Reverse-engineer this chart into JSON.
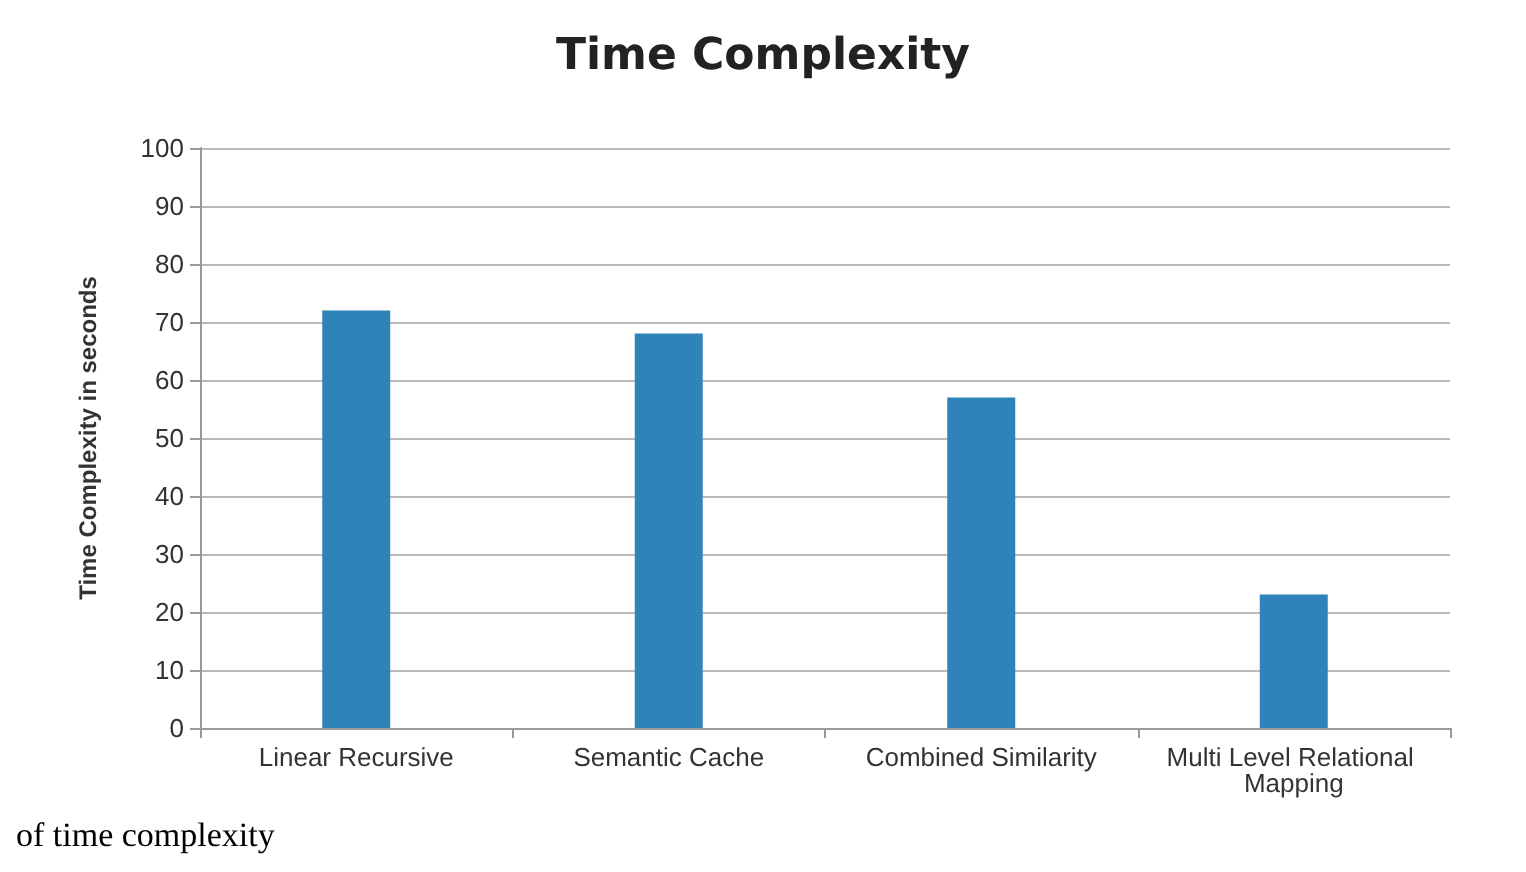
{
  "chart_data": {
    "type": "bar",
    "title": "Time Complexity",
    "ylabel": "Time Complexity in seconds",
    "categories": [
      "Linear Recursive",
      "Semantic Cache",
      "Combined Similarity",
      "Multi Level Relational Mapping"
    ],
    "values": [
      72,
      68,
      57,
      23
    ],
    "color": "#2e83b8",
    "ylim": [
      0,
      100
    ],
    "yticks": [
      0,
      10,
      20,
      30,
      40,
      50,
      60,
      70,
      80,
      90,
      100
    ],
    "grid": "y",
    "annotations": [
      "of time complexity"
    ]
  }
}
